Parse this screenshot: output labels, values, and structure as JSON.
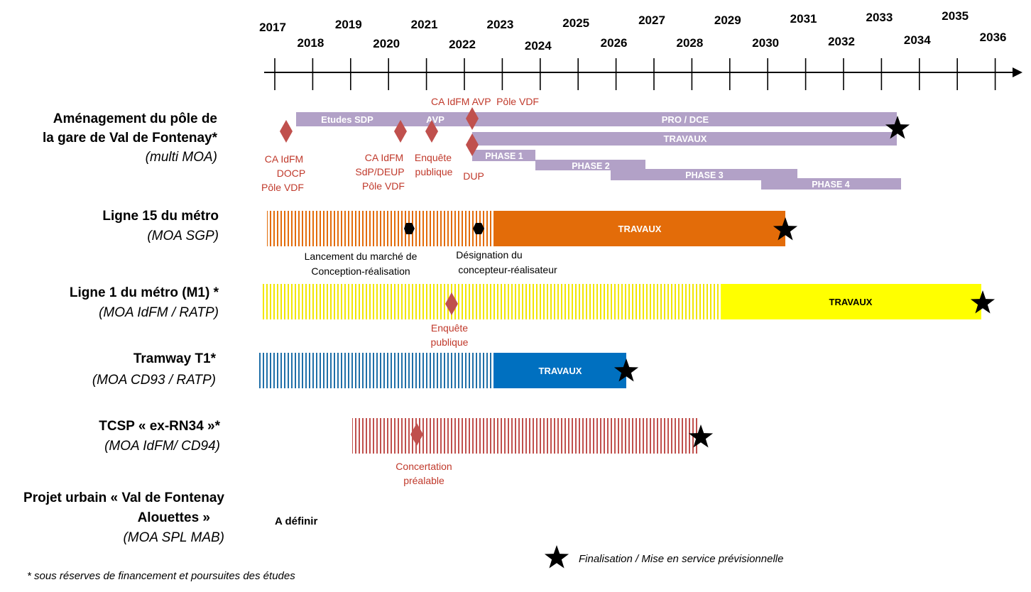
{
  "timeline": {
    "years": [
      "2017",
      "2018",
      "2019",
      "2020",
      "2021",
      "2022",
      "2023",
      "2024",
      "2025",
      "2026",
      "2027",
      "2028",
      "2029",
      "2030",
      "2031",
      "2032",
      "2033",
      "2034",
      "2035",
      "2036"
    ]
  },
  "projects": {
    "pole": {
      "title_line1": "Aménagement du pôle de",
      "title_line2": "la gare de Val de Fontenay*",
      "moa": "(multi MOA)",
      "bar_etudes": "Etudes SDP",
      "bar_avp": "AVP",
      "bar_pro": "PRO / DCE",
      "bar_travaux": "TRAVAUX",
      "phases": [
        "PHASE 1",
        "PHASE 2",
        "PHASE 3",
        "PHASE 4"
      ],
      "milestone_ca_docp": [
        "CA IdFM",
        "DOCP",
        "Pôle VDF"
      ],
      "milestone_ca_sdp": [
        "CA IdFM",
        "SdP/DEUP",
        "Pôle VDF"
      ],
      "milestone_enquete": [
        "Enquête",
        "publique"
      ],
      "milestone_ca_avp": "CA IdFM AVP  Pôle VDF",
      "milestone_dup": "DUP"
    },
    "l15": {
      "title": "Ligne 15 du métro",
      "moa": "(MOA SGP)",
      "bar_travaux": "TRAVAUX",
      "note_lancement": [
        "Lancement du marché de",
        "Conception-réalisation"
      ],
      "note_designation": [
        "Désignation du",
        "concepteur-réalisateur"
      ]
    },
    "m1": {
      "title": "Ligne 1 du métro (M1) *",
      "moa": "(MOA IdFM / RATP)",
      "bar_travaux": "TRAVAUX",
      "milestone_enquete": [
        "Enquête",
        "publique"
      ]
    },
    "t1": {
      "title": "Tramway T1*",
      "moa": "(MOA CD93 / RATP)",
      "bar_travaux": "TRAVAUX"
    },
    "tcsp": {
      "title": "TCSP « ex-RN34 »*",
      "moa": "(MOA IdFM/ CD94)",
      "milestone_concertation": [
        "Concertation",
        "préalable"
      ]
    },
    "urbain": {
      "title_line1": "Projet urbain « Val de Fontenay",
      "title_line2": "Alouettes »",
      "moa": "(MOA SPL MAB)",
      "status": "A définir"
    }
  },
  "legend": {
    "star_label": "Finalisation / Mise en service prévisionnelle"
  },
  "footnote": "* sous réserves de financement et poursuites des études",
  "colors": {
    "red_text": "#c0392b",
    "diamond": "#c0504d",
    "purple": "#b2a1c7",
    "orange": "#e36c09",
    "yellow": "#ffff00",
    "blue": "#0070c0",
    "tcsp_stripe": "#c0504d"
  }
}
